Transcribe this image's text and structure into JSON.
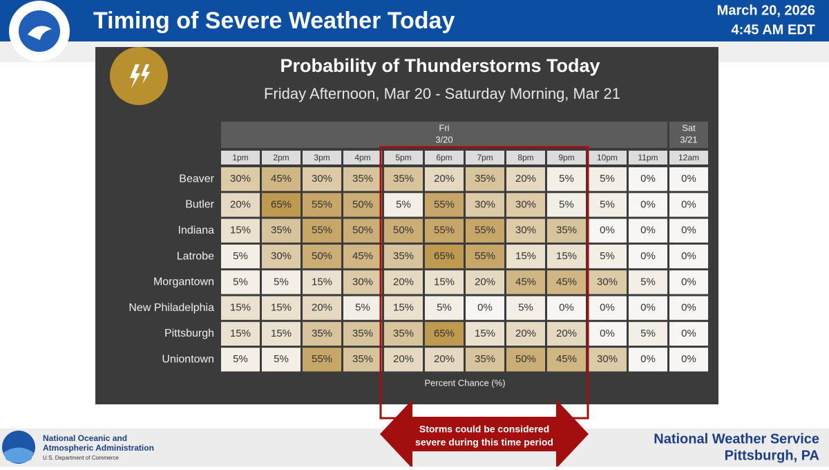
{
  "header": {
    "title": "Timing of Severe Weather Today",
    "date": "March 20, 2026",
    "time": "4:45 AM EDT"
  },
  "panel": {
    "title": "Probability of Thunderstorms Today",
    "subtitle": "Friday Afternoon, Mar 20 - Saturday Morning, Mar 21",
    "table": {
      "day_groups": [
        {
          "day": "Fri",
          "date": "3/20",
          "span": 11
        },
        {
          "day": "Sat",
          "date": "3/21",
          "span": 1
        }
      ],
      "hours": [
        "1pm",
        "2pm",
        "3pm",
        "4pm",
        "5pm",
        "6pm",
        "7pm",
        "8pm",
        "9pm",
        "10pm",
        "11pm",
        "12am"
      ],
      "rows": [
        {
          "name": "Beaver",
          "values": [
            "30%",
            "45%",
            "30%",
            "35%",
            "35%",
            "20%",
            "35%",
            "20%",
            "5%",
            "5%",
            "0%",
            "0%"
          ]
        },
        {
          "name": "Butler",
          "values": [
            "20%",
            "65%",
            "55%",
            "50%",
            "5%",
            "55%",
            "30%",
            "30%",
            "5%",
            "5%",
            "0%",
            "0%"
          ]
        },
        {
          "name": "Indiana",
          "values": [
            "15%",
            "35%",
            "55%",
            "50%",
            "50%",
            "55%",
            "55%",
            "30%",
            "35%",
            "0%",
            "0%",
            "0%"
          ]
        },
        {
          "name": "Latrobe",
          "values": [
            "5%",
            "30%",
            "50%",
            "45%",
            "35%",
            "65%",
            "55%",
            "15%",
            "15%",
            "5%",
            "0%",
            "0%"
          ]
        },
        {
          "name": "Morgantown",
          "values": [
            "5%",
            "5%",
            "15%",
            "30%",
            "20%",
            "15%",
            "20%",
            "45%",
            "45%",
            "30%",
            "5%",
            "0%"
          ]
        },
        {
          "name": "New Philadelphia",
          "values": [
            "15%",
            "15%",
            "20%",
            "5%",
            "15%",
            "5%",
            "0%",
            "5%",
            "0%",
            "0%",
            "0%",
            "0%"
          ]
        },
        {
          "name": "Pittsburgh",
          "values": [
            "15%",
            "15%",
            "35%",
            "35%",
            "35%",
            "65%",
            "15%",
            "20%",
            "20%",
            "0%",
            "5%",
            "0%"
          ]
        },
        {
          "name": "Uniontown",
          "values": [
            "5%",
            "5%",
            "55%",
            "35%",
            "20%",
            "20%",
            "35%",
            "50%",
            "45%",
            "30%",
            "0%",
            "0%"
          ]
        }
      ],
      "legend": "Percent Chance (%)"
    }
  },
  "annotation": "Storms could be considered severe during this time period",
  "footer": {
    "agency_line1": "National Oceanic and",
    "agency_line2": "Atmospheric Administration",
    "department": "U.S. Department of Commerce",
    "office": "National Weather Service",
    "location": "Pittsburgh, PA"
  }
}
